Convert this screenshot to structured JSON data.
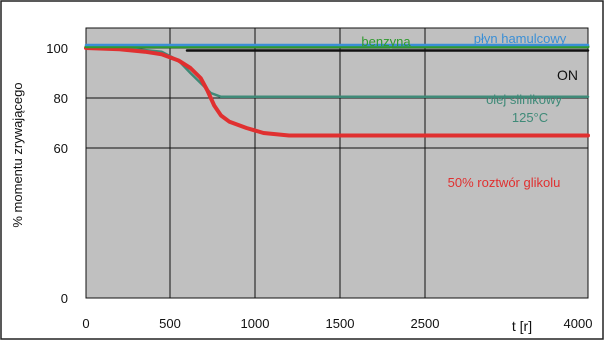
{
  "chart_data": {
    "type": "line",
    "ylabel": "% momentu zrywającego",
    "xlabel": "t [r]",
    "x_ticks": [
      "0",
      "500",
      "1000",
      "1500",
      "2500",
      "4000"
    ],
    "x_tick_values": [
      0,
      500,
      1000,
      1500,
      2500,
      4000
    ],
    "y_ticks": [
      "0",
      "60",
      "80",
      "100"
    ],
    "y_tick_values": [
      0,
      60,
      80,
      100
    ],
    "xlim": [
      0,
      4000
    ],
    "ylim": [
      0,
      108
    ],
    "grid": true,
    "background_color": "#c0c0c0",
    "series": [
      {
        "name": "benzyna",
        "label_text": [
          "benzyna"
        ],
        "color": "#2e9a2e",
        "x": [
          0,
          4000
        ],
        "y": [
          100.5,
          100.5
        ]
      },
      {
        "name": "płyn hamulcowy",
        "label_text": [
          "płyn hamulcowy"
        ],
        "color": "#3a8fd6",
        "x": [
          0,
          4000
        ],
        "y": [
          101.2,
          101.2
        ]
      },
      {
        "name": "ON",
        "label_text": [
          "ON"
        ],
        "color": "#111111",
        "x": [
          600,
          4000
        ],
        "y": [
          99,
          99
        ]
      },
      {
        "name": "olej silnikowy 125°C",
        "label_text": [
          "olej silnikowy",
          "125°C"
        ],
        "color": "#3f8a78",
        "x": [
          0,
          300,
          450,
          550,
          620,
          680,
          740,
          800,
          900,
          4000
        ],
        "y": [
          100,
          99.5,
          98.5,
          95,
          90,
          86,
          82,
          80.5,
          80.5,
          80.5
        ]
      },
      {
        "name": "50% roztwór glikolu",
        "label_text": [
          "50% roztwór glikolu"
        ],
        "color": "#e03030",
        "x": [
          0,
          200,
          350,
          450,
          550,
          620,
          680,
          720,
          760,
          800,
          850,
          950,
          1050,
          1200,
          1500,
          2000,
          4000
        ],
        "y": [
          100,
          99.5,
          98.5,
          97.5,
          95,
          92,
          88,
          83,
          77,
          73,
          70.5,
          68,
          66,
          65,
          65,
          65,
          65
        ]
      }
    ]
  }
}
